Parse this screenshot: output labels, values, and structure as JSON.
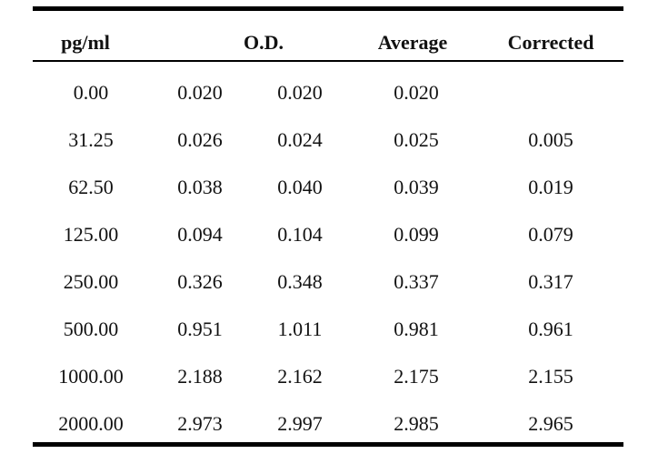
{
  "headers": {
    "concentration": "pg/ml",
    "od": "O.D.",
    "average": "Average",
    "corrected": "Corrected"
  },
  "rows": [
    {
      "conc": "0.00",
      "od1": "0.020",
      "od2": "0.020",
      "avg": "0.020",
      "corr": ""
    },
    {
      "conc": "31.25",
      "od1": "0.026",
      "od2": "0.024",
      "avg": "0.025",
      "corr": "0.005"
    },
    {
      "conc": "62.50",
      "od1": "0.038",
      "od2": "0.040",
      "avg": "0.039",
      "corr": "0.019"
    },
    {
      "conc": "125.00",
      "od1": "0.094",
      "od2": "0.104",
      "avg": "0.099",
      "corr": "0.079"
    },
    {
      "conc": "250.00",
      "od1": "0.326",
      "od2": "0.348",
      "avg": "0.337",
      "corr": "0.317"
    },
    {
      "conc": "500.00",
      "od1": "0.951",
      "od2": "1.011",
      "avg": "0.981",
      "corr": "0.961"
    },
    {
      "conc": "1000.00",
      "od1": "2.188",
      "od2": "2.162",
      "avg": "2.175",
      "corr": "2.155"
    },
    {
      "conc": "2000.00",
      "od1": "2.973",
      "od2": "2.997",
      "avg": "2.985",
      "corr": "2.965"
    }
  ]
}
